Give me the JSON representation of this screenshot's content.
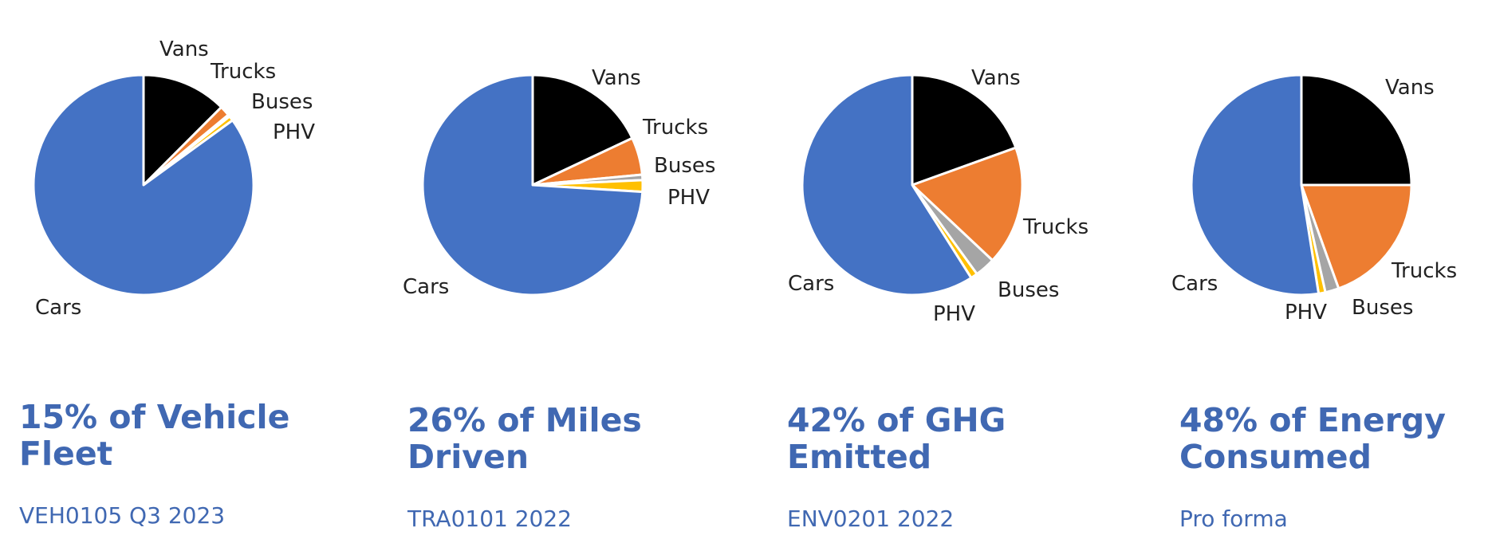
{
  "colors": {
    "Cars": "#4472c4",
    "Vans": "#000000",
    "Trucks": "#ed7d31",
    "Buses": "#a5a5a5",
    "PHV": "#ffc000",
    "text": "#4068b2"
  },
  "chart_data": [
    {
      "type": "pie",
      "title": "15% of Vehicle\nFleet",
      "subtitle": "VEH0105 Q3 2023",
      "categories": [
        "Vans",
        "Trucks",
        "Buses",
        "PHV",
        "Cars"
      ],
      "values": [
        12.5,
        1.5,
        0.3,
        0.7,
        85.0
      ]
    },
    {
      "type": "pie",
      "title": "26% of Miles\nDriven",
      "subtitle": "TRA0101 2022",
      "categories": [
        "Vans",
        "Trucks",
        "Buses",
        "PHV",
        "Cars"
      ],
      "values": [
        18.0,
        5.5,
        0.8,
        1.7,
        74.0
      ]
    },
    {
      "type": "pie",
      "title": "42% of GHG\nEmitted",
      "subtitle": "ENV0201 2022",
      "categories": [
        "Vans",
        "Trucks",
        "Buses",
        "PHV",
        "Cars"
      ],
      "values": [
        19.5,
        17.5,
        3.0,
        1.0,
        59.0
      ]
    },
    {
      "type": "pie",
      "title": "48% of Energy\nConsumed",
      "subtitle": "Pro forma",
      "categories": [
        "Vans",
        "Trucks",
        "Buses",
        "PHV",
        "Cars"
      ],
      "values": [
        25.0,
        19.5,
        2.0,
        1.0,
        52.5
      ]
    }
  ]
}
